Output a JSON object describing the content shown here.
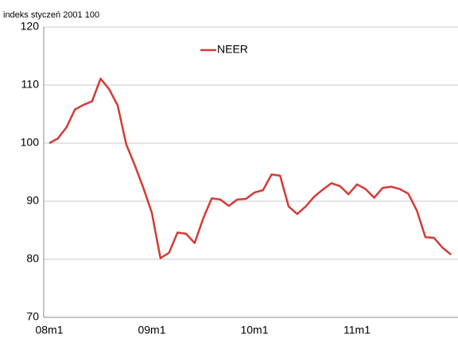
{
  "chart_data": {
    "type": "line",
    "subtitle": "indeks styczeń 2001  100",
    "categories": [
      "08m1",
      null,
      null,
      null,
      null,
      null,
      null,
      null,
      null,
      null,
      null,
      null,
      "09m1",
      null,
      null,
      null,
      null,
      null,
      null,
      null,
      null,
      null,
      null,
      null,
      "10m1",
      null,
      null,
      null,
      null,
      null,
      null,
      null,
      null,
      null,
      null,
      null,
      "11m1",
      null,
      null,
      null,
      null,
      null,
      null,
      null,
      null,
      null,
      null,
      null
    ],
    "series": [
      {
        "name": "NEER",
        "color": "#d43a36",
        "values": [
          100,
          100.8,
          102.7,
          105.8,
          106.6,
          107.2,
          111.1,
          109.3,
          106.5,
          99.8,
          96.2,
          92.3,
          88.0,
          80.2,
          81.1,
          84.6,
          84.4,
          82.8,
          87.0,
          90.5,
          90.3,
          89.2,
          90.3,
          90.4,
          91.5,
          91.9,
          94.6,
          94.4,
          89.1,
          87.8,
          89.1,
          90.8,
          92.0,
          93.1,
          92.6,
          91.2,
          92.9,
          92.1,
          90.6,
          92.3,
          92.5,
          92.1,
          91.3,
          88.4,
          83.8,
          83.7,
          82.0,
          80.8
        ]
      }
    ],
    "ylim": [
      70,
      120
    ],
    "yticks": [
      70,
      80,
      90,
      100,
      110,
      120
    ],
    "grid": true,
    "legend": "top"
  }
}
